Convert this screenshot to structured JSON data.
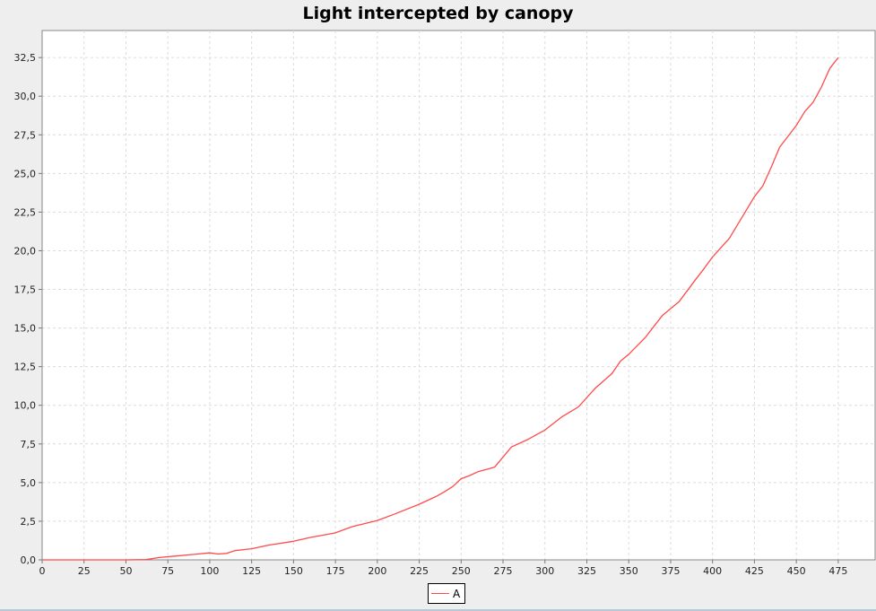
{
  "chart_data": {
    "type": "line",
    "title": "Light intercepted by canopy",
    "xlabel": "",
    "ylabel": "",
    "xlim": [
      0,
      497
    ],
    "ylim": [
      0,
      34.25
    ],
    "x_ticks": [
      "0",
      "25",
      "50",
      "75",
      "100",
      "125",
      "150",
      "175",
      "200",
      "225",
      "250",
      "275",
      "300",
      "325",
      "350",
      "375",
      "400",
      "425",
      "450",
      "475"
    ],
    "y_ticks": [
      "0,0",
      "2,5",
      "5,0",
      "7,5",
      "10,0",
      "12,5",
      "15,0",
      "17,5",
      "20,0",
      "22,5",
      "25,0",
      "27,5",
      "30,0",
      "32,5"
    ],
    "grid": true,
    "legend_position": "bottom",
    "series": [
      {
        "name": "A",
        "color": "#ff4a4a",
        "x": [
          0,
          50,
          62,
          70,
          80,
          90,
          100,
          105,
          110,
          115,
          125,
          135,
          150,
          160,
          170,
          175,
          185,
          200,
          210,
          225,
          235,
          240,
          245,
          250,
          255,
          260,
          265,
          270,
          280,
          290,
          300,
          310,
          320,
          330,
          340,
          345,
          350,
          355,
          360,
          370,
          380,
          390,
          395,
          400,
          410,
          420,
          425,
          430,
          435,
          440,
          445,
          450,
          455,
          460,
          465,
          470,
          475
        ],
        "y": [
          0,
          0,
          0.02,
          0.15,
          0.25,
          0.35,
          0.45,
          0.38,
          0.42,
          0.6,
          0.72,
          0.95,
          1.2,
          1.45,
          1.65,
          1.75,
          2.15,
          2.55,
          2.95,
          3.6,
          4.1,
          4.4,
          4.75,
          5.25,
          5.45,
          5.7,
          5.85,
          6.0,
          7.3,
          7.8,
          8.4,
          9.25,
          9.9,
          11.1,
          12.05,
          12.85,
          13.3,
          13.85,
          14.4,
          15.8,
          16.7,
          18.15,
          18.85,
          19.6,
          20.8,
          22.6,
          23.5,
          24.2,
          25.4,
          26.7,
          27.4,
          28.1,
          29.0,
          29.6,
          30.6,
          31.8,
          32.5
        ]
      }
    ]
  }
}
